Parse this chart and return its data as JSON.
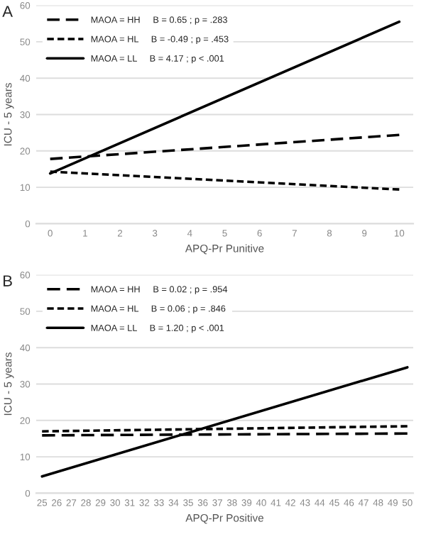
{
  "chart_data": [
    {
      "type": "line",
      "title": "A",
      "xlabel": "APQ-Pr Punitive",
      "ylabel": "ICU - 5 years",
      "xlim": [
        -0.4,
        10.4
      ],
      "xticks": [
        0,
        1,
        2,
        3,
        4,
        5,
        6,
        7,
        8,
        9,
        10
      ],
      "ylim": [
        0,
        60
      ],
      "yticks": [
        0,
        10,
        20,
        30,
        40,
        50,
        60
      ],
      "grid": "y",
      "legend": "top left",
      "series": [
        {
          "name": "MAOA = HH     B = 0.65 ; p = .283",
          "color": "#000000",
          "line_style": "dashed",
          "x": [
            0,
            10
          ],
          "values": [
            17.8,
            24.4
          ]
        },
        {
          "name": "MAOA = HL     B = -0.49 ; p = .453",
          "color": "#000000",
          "line_style": "dashed",
          "x": [
            0,
            10
          ],
          "values": [
            14.3,
            9.4
          ]
        },
        {
          "name": "MAOA = LL     B = 4.17 ; p < .001",
          "color": "#000000",
          "line_style": "solid",
          "x": [
            0,
            10
          ],
          "values": [
            13.8,
            55.5
          ]
        }
      ]
    },
    {
      "type": "line",
      "title": "B",
      "xlabel": "APQ-Pr Positive",
      "ylabel": "ICU - 5 years",
      "xlim": [
        24.6,
        50.4
      ],
      "xticks": [
        25,
        26,
        27,
        28,
        29,
        30,
        31,
        32,
        33,
        34,
        35,
        36,
        37,
        38,
        39,
        40,
        41,
        42,
        43,
        44,
        45,
        46,
        47,
        48,
        49,
        50
      ],
      "ylim": [
        0,
        60
      ],
      "yticks": [
        0,
        10,
        20,
        30,
        40,
        50,
        60
      ],
      "grid": "y",
      "legend": "top left",
      "series": [
        {
          "name": "MAOA = HH     B = 0.02 ; p = .954",
          "color": "#000000",
          "line_style": "dashed",
          "x": [
            25,
            50
          ],
          "values": [
            15.9,
            16.4
          ]
        },
        {
          "name": "MAOA = HL     B = 0.06 ; p = .846",
          "color": "#000000",
          "line_style": "dashed",
          "x": [
            25,
            50
          ],
          "values": [
            17.0,
            18.4
          ]
        },
        {
          "name": "MAOA = LL     B = 1.20 ; p < .001",
          "color": "#000000",
          "line_style": "solid",
          "x": [
            25,
            50
          ],
          "values": [
            4.6,
            34.6
          ]
        }
      ]
    }
  ]
}
